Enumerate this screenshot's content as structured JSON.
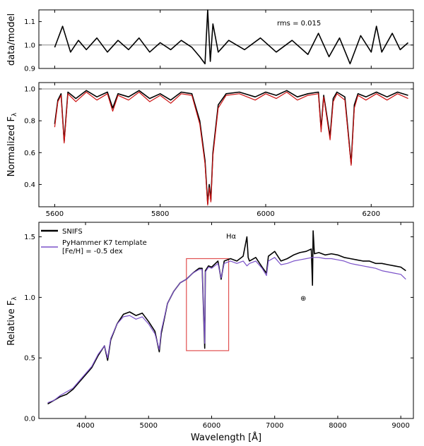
{
  "chart_data": [
    {
      "type": "line",
      "panel": "top",
      "ylabel": "data/model",
      "xlim": [
        5570,
        6280
      ],
      "ylim": [
        0.9,
        1.15
      ],
      "yticks": [
        0.9,
        1.0,
        1.1
      ],
      "reference_line": 1.0,
      "annotation": "rms = 0.015",
      "series": [
        {
          "color": "#000000",
          "x": [
            5600,
            5615,
            5630,
            5645,
            5660,
            5680,
            5700,
            5720,
            5740,
            5760,
            5780,
            5800,
            5820,
            5840,
            5860,
            5875,
            5885,
            5890,
            5895,
            5900,
            5910,
            5930,
            5960,
            5990,
            6020,
            6050,
            6080,
            6100,
            6120,
            6140,
            6160,
            6180,
            6200,
            6210,
            6220,
            6240,
            6255,
            6270
          ],
          "y": [
            0.99,
            1.08,
            0.97,
            1.02,
            0.98,
            1.03,
            0.97,
            1.02,
            0.98,
            1.03,
            0.97,
            1.01,
            0.98,
            1.02,
            0.99,
            0.95,
            0.92,
            1.15,
            0.93,
            1.09,
            0.97,
            1.02,
            0.98,
            1.03,
            0.97,
            1.02,
            0.96,
            1.05,
            0.95,
            1.03,
            0.92,
            1.04,
            0.97,
            1.08,
            0.97,
            1.05,
            0.98,
            1.01
          ]
        }
      ]
    },
    {
      "type": "line",
      "panel": "middle",
      "ylabel": "Normalized F",
      "ylabel_sub": "λ",
      "xlim": [
        5570,
        6280
      ],
      "ylim": [
        0.26,
        1.04
      ],
      "yticks": [
        0.4,
        0.6,
        0.8,
        1.0
      ],
      "xticks": [
        5600,
        5800,
        6000,
        6200
      ],
      "xtick_labels": [
        "5600",
        "5800",
        "6000",
        "6200"
      ],
      "reference_line": 1.0,
      "series": [
        {
          "color": "#000000",
          "x": [
            5600,
            5606,
            5612,
            5618,
            5625,
            5640,
            5660,
            5680,
            5700,
            5710,
            5720,
            5740,
            5760,
            5780,
            5800,
            5820,
            5840,
            5860,
            5875,
            5885,
            5890,
            5893,
            5896,
            5900,
            5910,
            5925,
            5950,
            5980,
            6000,
            6020,
            6040,
            6060,
            6080,
            6100,
            6105,
            6110,
            6122,
            6128,
            6135,
            6150,
            6162,
            6168,
            6175,
            6190,
            6210,
            6230,
            6250,
            6270
          ],
          "y": [
            0.78,
            0.93,
            0.97,
            0.67,
            0.98,
            0.94,
            0.99,
            0.95,
            0.98,
            0.88,
            0.97,
            0.95,
            0.99,
            0.94,
            0.97,
            0.93,
            0.98,
            0.97,
            0.8,
            0.55,
            0.28,
            0.4,
            0.3,
            0.6,
            0.9,
            0.97,
            0.98,
            0.95,
            0.98,
            0.96,
            0.99,
            0.95,
            0.97,
            0.98,
            0.75,
            0.96,
            0.7,
            0.94,
            0.98,
            0.95,
            0.53,
            0.9,
            0.97,
            0.95,
            0.98,
            0.95,
            0.98,
            0.96
          ]
        },
        {
          "color": "#cc1111",
          "x": [
            5600,
            5606,
            5612,
            5618,
            5625,
            5640,
            5660,
            5680,
            5700,
            5710,
            5720,
            5740,
            5760,
            5780,
            5800,
            5820,
            5840,
            5860,
            5875,
            5885,
            5890,
            5893,
            5896,
            5900,
            5910,
            5925,
            5950,
            5980,
            6000,
            6020,
            6040,
            6060,
            6080,
            6100,
            6105,
            6110,
            6122,
            6128,
            6135,
            6150,
            6162,
            6168,
            6175,
            6190,
            6210,
            6230,
            6250,
            6270
          ],
          "y": [
            0.76,
            0.92,
            0.96,
            0.66,
            0.97,
            0.92,
            0.98,
            0.93,
            0.97,
            0.86,
            0.96,
            0.93,
            0.98,
            0.92,
            0.96,
            0.91,
            0.97,
            0.96,
            0.78,
            0.53,
            0.27,
            0.38,
            0.29,
            0.58,
            0.88,
            0.96,
            0.97,
            0.93,
            0.97,
            0.94,
            0.98,
            0.93,
            0.96,
            0.97,
            0.73,
            0.95,
            0.68,
            0.92,
            0.97,
            0.93,
            0.52,
            0.88,
            0.96,
            0.93,
            0.97,
            0.93,
            0.97,
            0.94
          ]
        }
      ]
    },
    {
      "type": "line",
      "panel": "bottom",
      "xlabel": "Wavelength [Å]",
      "ylabel": "Relative F",
      "ylabel_sub": "λ",
      "xlim": [
        3260,
        9200
      ],
      "ylim": [
        0.0,
        1.62
      ],
      "xticks": [
        4000,
        5000,
        6000,
        7000,
        8000,
        9000
      ],
      "xtick_labels": [
        "4000",
        "5000",
        "6000",
        "7000",
        "8000",
        "9000"
      ],
      "yticks": [
        0.0,
        0.5,
        1.0,
        1.5
      ],
      "ytick_labels": [
        "0.0",
        "0.5",
        "1.0",
        "1.5"
      ],
      "legend": {
        "position": "top-left",
        "entries": [
          {
            "label": "SNIFS",
            "color": "#000000"
          },
          {
            "label": "PyHammer K7 template",
            "label2": "[Fe/H] = -0.5 dex",
            "color": "#7b52c9"
          }
        ]
      },
      "annotations": [
        {
          "text": "Hα",
          "x": 6560,
          "y": 1.45
        },
        {
          "text": "⊕",
          "x": 7600,
          "y": 1.0
        }
      ],
      "highlight_box": {
        "x0": 5600,
        "x1": 6270,
        "y0": 0.56,
        "y1": 1.32,
        "color": "#e05050"
      },
      "series": [
        {
          "name": "SNIFS",
          "color": "#000000",
          "x": [
            3400,
            3500,
            3600,
            3700,
            3800,
            3900,
            4000,
            4100,
            4200,
            4300,
            4350,
            4400,
            4500,
            4600,
            4700,
            4800,
            4900,
            5000,
            5100,
            5170,
            5200,
            5300,
            5400,
            5500,
            5600,
            5700,
            5800,
            5850,
            5890,
            5900,
            5950,
            6000,
            6100,
            6150,
            6200,
            6300,
            6400,
            6500,
            6560,
            6580,
            6600,
            6700,
            6800,
            6870,
            6900,
            7000,
            7100,
            7200,
            7300,
            7400,
            7500,
            7580,
            7600,
            7610,
            7630,
            7700,
            7800,
            7900,
            8000,
            8100,
            8200,
            8300,
            8400,
            8500,
            8600,
            8700,
            8800,
            8900,
            9000,
            9080
          ],
          "y": [
            0.12,
            0.15,
            0.18,
            0.2,
            0.24,
            0.3,
            0.36,
            0.42,
            0.52,
            0.6,
            0.48,
            0.65,
            0.78,
            0.86,
            0.88,
            0.85,
            0.87,
            0.8,
            0.72,
            0.55,
            0.7,
            0.95,
            1.05,
            1.12,
            1.15,
            1.2,
            1.24,
            1.24,
            0.58,
            1.22,
            1.26,
            1.25,
            1.3,
            1.15,
            1.3,
            1.32,
            1.3,
            1.34,
            1.5,
            1.33,
            1.3,
            1.33,
            1.25,
            1.2,
            1.34,
            1.38,
            1.3,
            1.32,
            1.35,
            1.37,
            1.38,
            1.4,
            1.1,
            1.55,
            1.36,
            1.37,
            1.35,
            1.36,
            1.35,
            1.33,
            1.32,
            1.31,
            1.3,
            1.3,
            1.28,
            1.28,
            1.27,
            1.26,
            1.25,
            1.22
          ]
        },
        {
          "name": "PyHammer K7 template",
          "color": "#7b52c9",
          "x": [
            3400,
            3500,
            3600,
            3700,
            3800,
            3900,
            4000,
            4100,
            4200,
            4300,
            4350,
            4400,
            4500,
            4600,
            4700,
            4800,
            4900,
            5000,
            5100,
            5170,
            5200,
            5300,
            5400,
            5500,
            5600,
            5700,
            5800,
            5850,
            5890,
            5900,
            5950,
            6000,
            6100,
            6150,
            6200,
            6300,
            6400,
            6500,
            6560,
            6600,
            6700,
            6800,
            6870,
            6900,
            7000,
            7100,
            7200,
            7300,
            7400,
            7500,
            7600,
            7700,
            7800,
            7900,
            8000,
            8100,
            8200,
            8300,
            8400,
            8500,
            8600,
            8700,
            8800,
            8900,
            9000,
            9080
          ],
          "y": [
            0.13,
            0.15,
            0.19,
            0.22,
            0.25,
            0.31,
            0.37,
            0.43,
            0.53,
            0.6,
            0.5,
            0.66,
            0.78,
            0.84,
            0.85,
            0.82,
            0.84,
            0.78,
            0.7,
            0.57,
            0.72,
            0.95,
            1.05,
            1.12,
            1.15,
            1.2,
            1.23,
            1.23,
            0.62,
            1.21,
            1.25,
            1.24,
            1.28,
            1.16,
            1.28,
            1.3,
            1.28,
            1.3,
            1.26,
            1.28,
            1.3,
            1.24,
            1.18,
            1.3,
            1.33,
            1.27,
            1.28,
            1.3,
            1.31,
            1.32,
            1.33,
            1.33,
            1.32,
            1.32,
            1.31,
            1.3,
            1.28,
            1.27,
            1.26,
            1.25,
            1.24,
            1.22,
            1.21,
            1.2,
            1.19,
            1.15
          ]
        }
      ]
    }
  ]
}
